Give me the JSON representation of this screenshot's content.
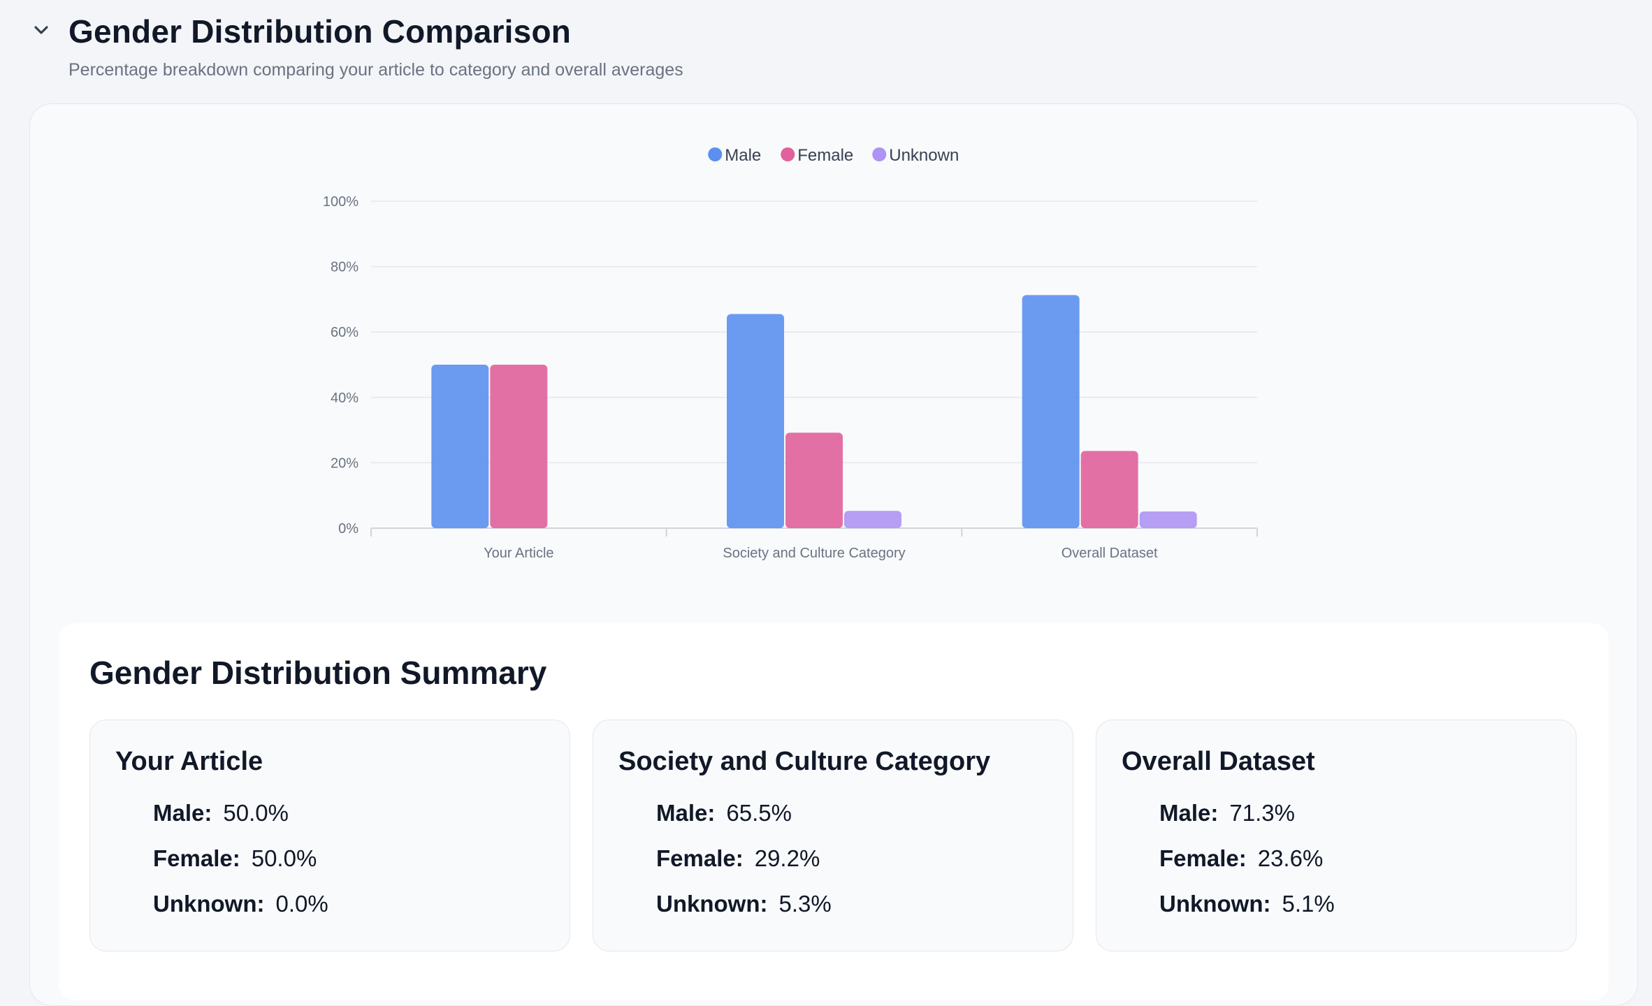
{
  "header": {
    "title": "Gender Distribution Comparison",
    "subtitle": "Percentage breakdown comparing your article to category and overall averages",
    "toggle_icon": "chevron-down-icon"
  },
  "colors": {
    "male": "#5b8ff0",
    "female": "#e0619b",
    "unknown": "#ad93f3",
    "grid": "#e5e7eb",
    "axis_text": "#6b7280"
  },
  "chart_data": {
    "type": "bar",
    "title": "",
    "xlabel": "",
    "ylabel": "",
    "categories": [
      "Your Article",
      "Society and Culture Category",
      "Overall Dataset"
    ],
    "series": [
      {
        "name": "Male",
        "values": [
          50.0,
          65.5,
          71.3
        ]
      },
      {
        "name": "Female",
        "values": [
          50.0,
          29.2,
          23.6
        ]
      },
      {
        "name": "Unknown",
        "values": [
          0.0,
          5.3,
          5.1
        ]
      }
    ],
    "ylim": [
      0,
      100
    ],
    "yticks": [
      "0%",
      "20%",
      "40%",
      "60%",
      "80%",
      "100%"
    ],
    "grid": true,
    "legend": "top-center"
  },
  "summary": {
    "title": "Gender Distribution Summary",
    "boxes": [
      {
        "title": "Your Article",
        "rows": [
          {
            "label": "Male:",
            "value": "50.0%"
          },
          {
            "label": "Female:",
            "value": "50.0%"
          },
          {
            "label": "Unknown:",
            "value": "0.0%"
          }
        ]
      },
      {
        "title": "Society and Culture Category",
        "rows": [
          {
            "label": "Male:",
            "value": "65.5%"
          },
          {
            "label": "Female:",
            "value": "29.2%"
          },
          {
            "label": "Unknown:",
            "value": "5.3%"
          }
        ]
      },
      {
        "title": "Overall Dataset",
        "rows": [
          {
            "label": "Male:",
            "value": "71.3%"
          },
          {
            "label": "Female:",
            "value": "23.6%"
          },
          {
            "label": "Unknown:",
            "value": "5.1%"
          }
        ]
      }
    ]
  }
}
